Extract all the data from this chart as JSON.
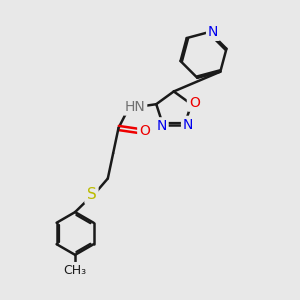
{
  "bg_color": "#e8e8e8",
  "bond_color": "#1a1a1a",
  "n_color": "#0000ee",
  "o_color": "#ee0000",
  "s_color": "#bbbb00",
  "nh_color": "#707070",
  "line_width": 1.8,
  "font_size": 10,
  "figsize": [
    3.0,
    3.0
  ],
  "dpi": 100,
  "xlim": [
    0,
    10
  ],
  "ylim": [
    0,
    10
  ]
}
